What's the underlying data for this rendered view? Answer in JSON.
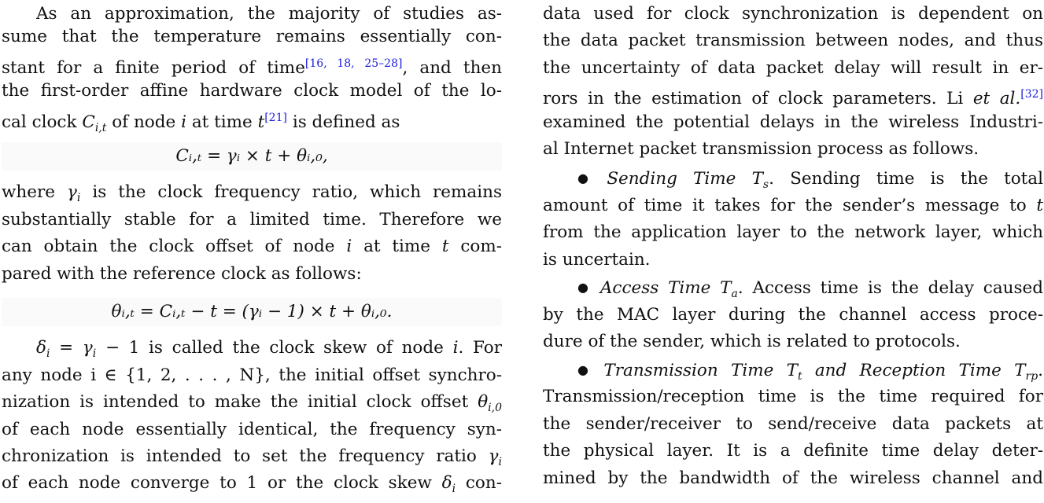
{
  "left": {
    "p1": {
      "l1": "As an approximation, the majority of studies as-",
      "l2": "sume that the temperature remains essentially con-",
      "l3a": "stant for a finite period of time",
      "l3_cite": "[16, 18, 25–28]",
      "l3b": ", and then",
      "l4": "the first-order affine hardware clock model of the lo-",
      "l5a": "cal clock",
      "l5_var": "C",
      "l5_sub": "i,t",
      "l5b": "of node",
      "l5_i": "i",
      "l5c": "at time",
      "l5_t": "t",
      "l5_cite": "[21]",
      "l5d": "is defined as"
    },
    "eq1": "Cᵢ,ₜ = γᵢ × t + θᵢ,₀,",
    "p2": {
      "l1a": "where",
      "l1_var": "γ",
      "l1_sub": "i",
      "l1b": "is the clock frequency ratio, which remains",
      "l2": "substantially stable for a limited time. Therefore we",
      "l3a": "can obtain the clock offset of node",
      "l3_i": "i",
      "l3b": "at time",
      "l3_t": "t",
      "l3c": "com-",
      "l4": "pared with the reference clock as follows:"
    },
    "eq2": "θᵢ,ₜ = Cᵢ,ₜ − t = (γᵢ − 1) × t + θᵢ,₀.",
    "p3": {
      "l1a": "δ",
      "l1_sub": "i",
      "l1b": "= γ",
      "l1_sub2": "i",
      "l1c": "− 1 is called the clock skew of node",
      "l1_i": "i",
      "l1d": ". For",
      "l2": "any node  i ∈ {1, 2, . . . , N}, the initial offset synchro-",
      "l3a": "nization is intended to make the initial clock offset",
      "l3_var": "θ",
      "l3_sub": "i,0",
      "l4": "of each node essentially identical, the frequency syn-",
      "l5a": "chronization is intended to set the frequency ratio",
      "l5_var": "γ",
      "l5_sub": "i",
      "l6a": "of each node converge to 1 or the clock skew",
      "l6_var": "δ",
      "l6_sub": "i",
      "l6b": "con-"
    }
  },
  "right": {
    "p1": {
      "l1": "data used for clock synchronization is dependent on",
      "l2": "the data packet transmission between nodes, and thus",
      "l3": "the uncertainty of data packet delay will result in er-",
      "l4a": "rors in the estimation of clock parameters. Li",
      "l4_it": "et al.",
      "l4_cite": "[32]",
      "l5": "examined the potential delays in the wireless Industri-",
      "l6": "al Internet packet transmission process as follows."
    },
    "b1": {
      "bullet": "●",
      "title": "Sending Time",
      "var": "T",
      "sub": "s",
      "l1b": ". Sending time is the total",
      "l2a": "amount of time it takes for the sender’s message to",
      "l2_t": "t",
      "l3": "from the application layer to the network layer, which",
      "l4": "is uncertain."
    },
    "b2": {
      "bullet": "●",
      "title": "Access Time",
      "var": "T",
      "sub": "a",
      "l1b": ". Access time is the delay caused",
      "l2": "by the MAC layer during the channel access proce-",
      "l3": "dure of the sender, which is related to protocols."
    },
    "b3": {
      "bullet": "●",
      "title": "Transmission Time",
      "var": "T",
      "sub": "t",
      "mid": "and Reception Time",
      "var2": "T",
      "sub2": "rp",
      "end": ".",
      "l2": "Transmission/reception time is the time required for",
      "l3": "the sender/receiver to send/receive data packets at",
      "l4": "the physical layer. It is a definite time delay deter-",
      "l5": "mined by the bandwidth of the wireless channel and"
    }
  }
}
